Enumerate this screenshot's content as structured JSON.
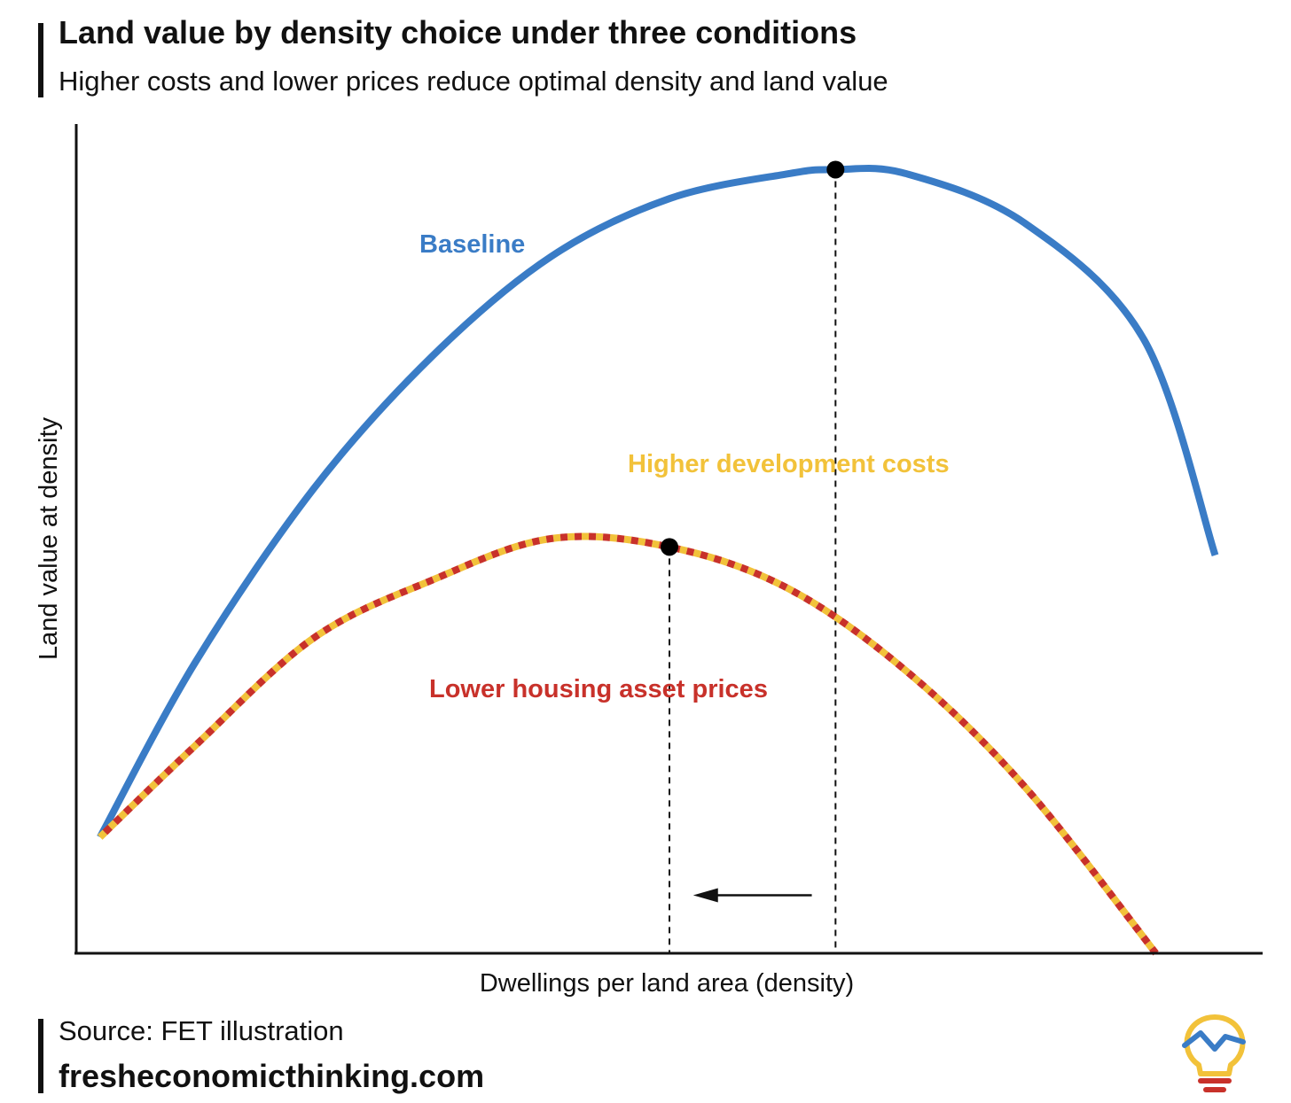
{
  "header": {
    "title": "Land value by density choice under three conditions",
    "subtitle": "Higher costs and lower prices reduce optimal density and land value"
  },
  "footer": {
    "source": "Source: FET illustration",
    "site": "fresheconomicthinking.com"
  },
  "logo": {
    "icon": "lightbulb-logo-icon"
  },
  "colors": {
    "baseline": "#3a7cc6",
    "costs": "#f2c23a",
    "prices": "#c8312a",
    "axis": "#111111"
  },
  "chart_data": {
    "type": "line",
    "title": "Land value by density choice under three conditions",
    "xlabel": "Dwellings per land area (density)",
    "ylabel": "Land value at density",
    "xlim": [
      0,
      100
    ],
    "ylim": [
      0,
      100
    ],
    "grid": false,
    "series": [
      {
        "name": "Baseline",
        "color": "#3a7cc6",
        "style": "solid",
        "x": [
          2,
          10,
          20,
          30,
          40,
          50,
          60,
          64,
          70,
          80,
          90,
          96
        ],
        "y": [
          14,
          35,
          56,
          72,
          84,
          91,
          94,
          94.5,
          94,
          88,
          74,
          48
        ]
      },
      {
        "name": "Higher development costs",
        "color": "#f2c23a",
        "style": "dashed",
        "x": [
          2,
          10,
          20,
          30,
          40,
          50,
          60,
          70,
          80,
          91
        ],
        "y": [
          14,
          25,
          38,
          45,
          50,
          49,
          44,
          34,
          20,
          0
        ]
      },
      {
        "name": "Lower housing asset prices",
        "color": "#c8312a",
        "style": "dashed",
        "x": [
          2,
          10,
          20,
          30,
          40,
          50,
          60,
          70,
          80,
          91
        ],
        "y": [
          14,
          25,
          38,
          45,
          50,
          49,
          44,
          34,
          20,
          0
        ]
      }
    ],
    "optima": [
      {
        "series": "Baseline",
        "x": 64,
        "y": 94.5
      },
      {
        "series": "Higher development costs",
        "x": 50,
        "y": 49
      }
    ],
    "annotations": [
      {
        "type": "arrow",
        "direction": "left",
        "from_x": 62,
        "to_x": 52,
        "y": 7
      }
    ]
  }
}
